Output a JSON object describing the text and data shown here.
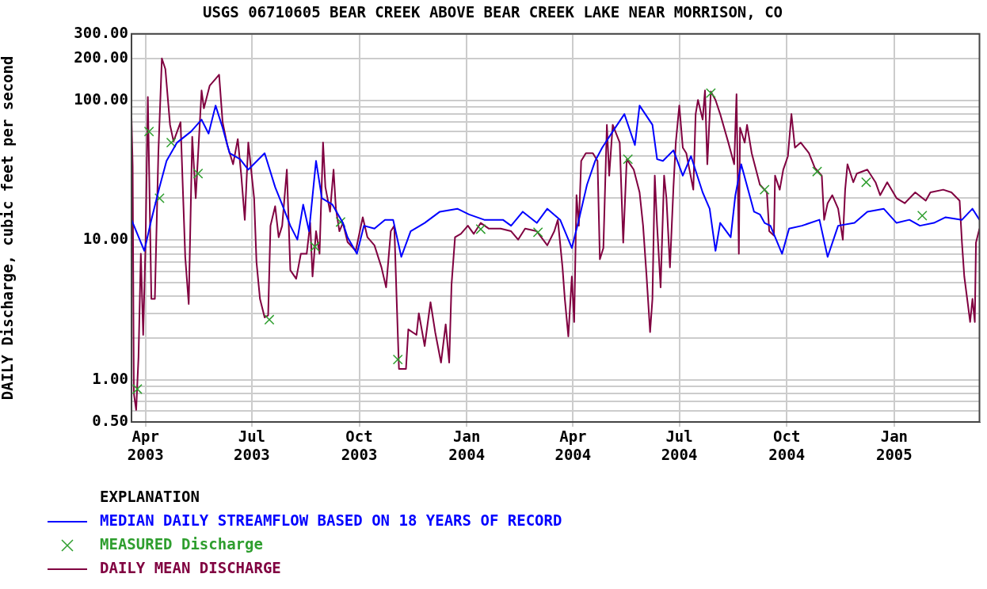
{
  "chart_data": {
    "type": "line",
    "title": "USGS 06710605 BEAR CREEK ABOVE BEAR CREEK LAKE NEAR MORRISON, CO",
    "ylabel": "DAILY Discharge, cubic feet per second",
    "legend_title": "EXPLANATION",
    "legend": "bottom",
    "grid": true,
    "log": "y",
    "ylim": [
      0.5,
      300
    ],
    "yticks": [
      {
        "value": 0.5,
        "label": "0.50"
      },
      {
        "value": 0.6,
        "label": null
      },
      {
        "value": 0.7,
        "label": null
      },
      {
        "value": 0.8,
        "label": null
      },
      {
        "value": 0.9,
        "label": null
      },
      {
        "value": 1,
        "label": "1.00"
      },
      {
        "value": 2,
        "label": null
      },
      {
        "value": 3,
        "label": null
      },
      {
        "value": 4,
        "label": null
      },
      {
        "value": 5,
        "label": null
      },
      {
        "value": 6,
        "label": null
      },
      {
        "value": 7,
        "label": null
      },
      {
        "value": 8,
        "label": null
      },
      {
        "value": 9,
        "label": null
      },
      {
        "value": 10,
        "label": "10.00"
      },
      {
        "value": 20,
        "label": null
      },
      {
        "value": 30,
        "label": null
      },
      {
        "value": 40,
        "label": null
      },
      {
        "value": 50,
        "label": null
      },
      {
        "value": 60,
        "label": null
      },
      {
        "value": 70,
        "label": null
      },
      {
        "value": 80,
        "label": null
      },
      {
        "value": 90,
        "label": null
      },
      {
        "value": 100,
        "label": "100.00"
      },
      {
        "value": 200,
        "label": "200.00"
      },
      {
        "value": 300,
        "label": "300.00"
      }
    ],
    "xlim": [
      "2003-03-20",
      "2005-03-15"
    ],
    "xticks": [
      {
        "value": "2003-04-01",
        "label": "Apr 2003"
      },
      {
        "value": "2003-07-01",
        "label": "Jul 2003"
      },
      {
        "value": "2003-10-01",
        "label": "Oct 2003"
      },
      {
        "value": "2004-01-01",
        "label": "Jan 2004"
      },
      {
        "value": "2004-04-01",
        "label": "Apr 2004"
      },
      {
        "value": "2004-07-01",
        "label": "Jul 2004"
      },
      {
        "value": "2004-10-01",
        "label": "Oct 2004"
      },
      {
        "value": "2005-01-01",
        "label": "Jan 2005"
      }
    ],
    "series": [
      {
        "name": "MEDIAN DAILY STREAMFLOW BASED ON 18 YEARS OF RECORD",
        "color": "#0000ff",
        "x": [
          "2003-03-20",
          "2003-03-31",
          "2003-04-06",
          "2003-04-13",
          "2003-04-19",
          "2003-04-28",
          "2003-05-10",
          "2003-05-19",
          "2003-05-25",
          "2003-05-31",
          "2003-06-06",
          "2003-06-12",
          "2003-06-21",
          "2003-06-28",
          "2003-07-12",
          "2003-07-21",
          "2003-07-27",
          "2003-08-03",
          "2003-08-09",
          "2003-08-14",
          "2003-08-19",
          "2003-08-25",
          "2003-08-30",
          "2003-09-08",
          "2003-09-17",
          "2003-09-21",
          "2003-09-29",
          "2003-10-05",
          "2003-10-14",
          "2003-10-23",
          "2003-10-30",
          "2003-11-06",
          "2003-11-14",
          "2003-11-26",
          "2003-12-09",
          "2003-12-24",
          "2004-01-03",
          "2004-01-16",
          "2004-02-01",
          "2004-02-08",
          "2004-02-18",
          "2004-03-01",
          "2004-03-10",
          "2004-03-21",
          "2004-03-31",
          "2004-04-06",
          "2004-04-13",
          "2004-04-20",
          "2004-04-26",
          "2004-05-05",
          "2004-05-15",
          "2004-05-24",
          "2004-05-28",
          "2004-06-08",
          "2004-06-12",
          "2004-06-17",
          "2004-06-26",
          "2004-07-04",
          "2004-07-11",
          "2004-07-21",
          "2004-07-27",
          "2004-08-01",
          "2004-08-05",
          "2004-08-14",
          "2004-08-18",
          "2004-08-23",
          "2004-09-03",
          "2004-09-08",
          "2004-09-12",
          "2004-09-17",
          "2004-09-27",
          "2004-10-03",
          "2004-10-14",
          "2004-10-29",
          "2004-11-05",
          "2004-11-14",
          "2004-11-28",
          "2004-12-09",
          "2004-12-23",
          "2005-01-03",
          "2005-01-14",
          "2005-01-23",
          "2005-02-04",
          "2005-02-14",
          "2005-02-28",
          "2005-03-09",
          "2005-03-15"
        ],
        "values": [
          14,
          8.4,
          14,
          24,
          37,
          50,
          60,
          73,
          58,
          92,
          64,
          42,
          38,
          32,
          42,
          24,
          18,
          12.7,
          10.1,
          18,
          11.6,
          37,
          20,
          18,
          13.3,
          10.5,
          8,
          12.7,
          12.1,
          14,
          14,
          7.6,
          11.6,
          13.3,
          16,
          16.8,
          15.3,
          14,
          14,
          12.7,
          16,
          13.3,
          16.8,
          14,
          8.8,
          14,
          25,
          37,
          46,
          60,
          80,
          48,
          92,
          67,
          38,
          37,
          44,
          29,
          40,
          22,
          16.8,
          8.4,
          13.3,
          10.5,
          21,
          35,
          16,
          15.3,
          13.3,
          12.7,
          8,
          12.1,
          12.7,
          14,
          7.6,
          12.7,
          13.3,
          16,
          16.8,
          13.3,
          14,
          12.7,
          13.3,
          14.6,
          14,
          16.8,
          14
        ]
      },
      {
        "name": "MEASURED Discharge",
        "type": "scatter",
        "marker": "cross",
        "color": "#2e9e2e",
        "x": [
          "2003-03-25",
          "2003-04-04",
          "2003-04-13",
          "2003-04-23",
          "2003-05-16",
          "2003-07-16",
          "2003-08-24",
          "2003-09-15",
          "2003-11-03",
          "2004-01-13",
          "2004-03-02",
          "2004-05-18",
          "2004-07-28",
          "2004-09-12",
          "2004-10-27",
          "2004-12-08",
          "2005-01-25"
        ],
        "values": [
          0.86,
          60,
          20,
          50,
          30,
          2.7,
          9,
          13.5,
          1.4,
          12,
          11.4,
          38,
          113,
          23,
          31,
          26,
          15
        ]
      },
      {
        "name": "DAILY MEAN DISCHARGE",
        "color": "#800040",
        "x": [
          "2003-03-20",
          "2003-03-21",
          "2003-03-22",
          "2003-03-24",
          "2003-03-26",
          "2003-03-28",
          "2003-03-30",
          "2003-04-01",
          "2003-04-03",
          "2003-04-06",
          "2003-04-09",
          "2003-04-12",
          "2003-04-15",
          "2003-04-18",
          "2003-04-22",
          "2003-04-25",
          "2003-05-01",
          "2003-05-05",
          "2003-05-08",
          "2003-05-11",
          "2003-05-14",
          "2003-05-19",
          "2003-05-21",
          "2003-05-26",
          "2003-05-31",
          "2003-06-03",
          "2003-06-06",
          "2003-06-10",
          "2003-06-15",
          "2003-06-19",
          "2003-06-22",
          "2003-06-25",
          "2003-06-28",
          "2003-07-03",
          "2003-07-05",
          "2003-07-08",
          "2003-07-12",
          "2003-07-15",
          "2003-07-17",
          "2003-07-21",
          "2003-07-24",
          "2003-07-27",
          "2003-07-31",
          "2003-08-03",
          "2003-08-08",
          "2003-08-12",
          "2003-08-17",
          "2003-08-20",
          "2003-08-22",
          "2003-08-25",
          "2003-08-28",
          "2003-08-31",
          "2003-09-02",
          "2003-09-06",
          "2003-09-09",
          "2003-09-11",
          "2003-09-14",
          "2003-09-17",
          "2003-09-21",
          "2003-09-28",
          "2003-10-04",
          "2003-10-08",
          "2003-10-14",
          "2003-10-20",
          "2003-10-24",
          "2003-10-28",
          "2003-10-31",
          "2003-11-02",
          "2003-11-04",
          "2003-11-10",
          "2003-11-12",
          "2003-11-19",
          "2003-11-21",
          "2003-11-26",
          "2003-12-01",
          "2003-12-05",
          "2003-12-10",
          "2003-12-14",
          "2003-12-17",
          "2003-12-19",
          "2003-12-22",
          "2003-12-27",
          "2004-01-02",
          "2004-01-07",
          "2004-01-13",
          "2004-01-20",
          "2004-01-30",
          "2004-02-08",
          "2004-02-14",
          "2004-02-20",
          "2004-03-01",
          "2004-03-10",
          "2004-03-16",
          "2004-03-19",
          "2004-03-23",
          "2004-03-25",
          "2004-03-28",
          "2004-03-31",
          "2004-04-02",
          "2004-04-04",
          "2004-04-06",
          "2004-04-08",
          "2004-04-12",
          "2004-04-18",
          "2004-04-22",
          "2004-04-24",
          "2004-04-27",
          "2004-04-30",
          "2004-05-02",
          "2004-05-05",
          "2004-05-11",
          "2004-05-14",
          "2004-05-17",
          "2004-05-23",
          "2004-05-28",
          "2004-05-31",
          "2004-06-03",
          "2004-06-06",
          "2004-06-08",
          "2004-06-10",
          "2004-06-12",
          "2004-06-15",
          "2004-06-18",
          "2004-06-20",
          "2004-06-23",
          "2004-06-26",
          "2004-06-28",
          "2004-07-01",
          "2004-07-04",
          "2004-07-07",
          "2004-07-13",
          "2004-07-15",
          "2004-07-17",
          "2004-07-21",
          "2004-07-23",
          "2004-07-25",
          "2004-07-28",
          "2004-08-01",
          "2004-08-05",
          "2004-08-12",
          "2004-08-17",
          "2004-08-19",
          "2004-08-21",
          "2004-08-22",
          "2004-08-26",
          "2004-08-28",
          "2004-09-01",
          "2004-09-08",
          "2004-09-14",
          "2004-09-16",
          "2004-09-20",
          "2004-09-21",
          "2004-09-25",
          "2004-09-28",
          "2004-10-02",
          "2004-10-05",
          "2004-10-08",
          "2004-10-13",
          "2004-10-20",
          "2004-10-25",
          "2004-10-31",
          "2004-11-02",
          "2004-11-05",
          "2004-11-09",
          "2004-11-14",
          "2004-11-18",
          "2004-11-20",
          "2004-11-22",
          "2004-11-27",
          "2004-11-30",
          "2004-12-09",
          "2004-12-16",
          "2004-12-20",
          "2004-12-26",
          "2005-01-03",
          "2005-01-10",
          "2005-01-19",
          "2005-01-28",
          "2005-02-01",
          "2005-02-12",
          "2005-02-19",
          "2005-02-26",
          "2005-02-28",
          "2005-03-02",
          "2005-03-07",
          "2005-03-09",
          "2005-03-11",
          "2005-03-12",
          "2005-03-15"
        ],
        "values": [
          77,
          34,
          0.8,
          0.61,
          1.45,
          8,
          2.1,
          9.2,
          106,
          3.8,
          3.8,
          42,
          200,
          168,
          67,
          51,
          70,
          7.6,
          3.5,
          55,
          20,
          118,
          88,
          128,
          143,
          153,
          70,
          48,
          35,
          53,
          29,
          14,
          50,
          20,
          7,
          3.8,
          2.8,
          2.9,
          12.7,
          17.5,
          10.5,
          12.7,
          32,
          6.1,
          5.3,
          8,
          8,
          13.3,
          5.5,
          11.6,
          8,
          50,
          24,
          16,
          32,
          16.8,
          11.6,
          13.3,
          9.7,
          8.4,
          14.6,
          10.5,
          9.2,
          6.4,
          4.6,
          11.6,
          12.7,
          3.8,
          1.2,
          1.2,
          2.3,
          2.1,
          3,
          1.75,
          3.6,
          2.2,
          1.33,
          2.5,
          1.33,
          4.8,
          10.5,
          11.1,
          12.7,
          11.1,
          13.3,
          12.1,
          12.1,
          11.6,
          10.1,
          12.1,
          11.6,
          9.2,
          11.6,
          14,
          6.4,
          3.8,
          2.05,
          5.5,
          2.6,
          21,
          12.7,
          37,
          42,
          42,
          37,
          7.3,
          8.8,
          67,
          29,
          67,
          50,
          9.6,
          38,
          32,
          22,
          12.7,
          5.5,
          2.2,
          3.8,
          29,
          12.7,
          4.6,
          29,
          20,
          6.4,
          24,
          50,
          92,
          46,
          42,
          23,
          80,
          101,
          73,
          118,
          35,
          116,
          101,
          80,
          50,
          35,
          111,
          8,
          64,
          50,
          67,
          42,
          25,
          22,
          11.6,
          10.8,
          29,
          23,
          32,
          40,
          80,
          46,
          50,
          42,
          33,
          29,
          14,
          18.4,
          21,
          16.8,
          10.1,
          23,
          35,
          26,
          30,
          32,
          26,
          21,
          26,
          20,
          18.4,
          22,
          19.2,
          22,
          23,
          22,
          19.2,
          9.6,
          5.5,
          2.6,
          3.8,
          2.6,
          9.6,
          12.1
        ]
      }
    ]
  }
}
